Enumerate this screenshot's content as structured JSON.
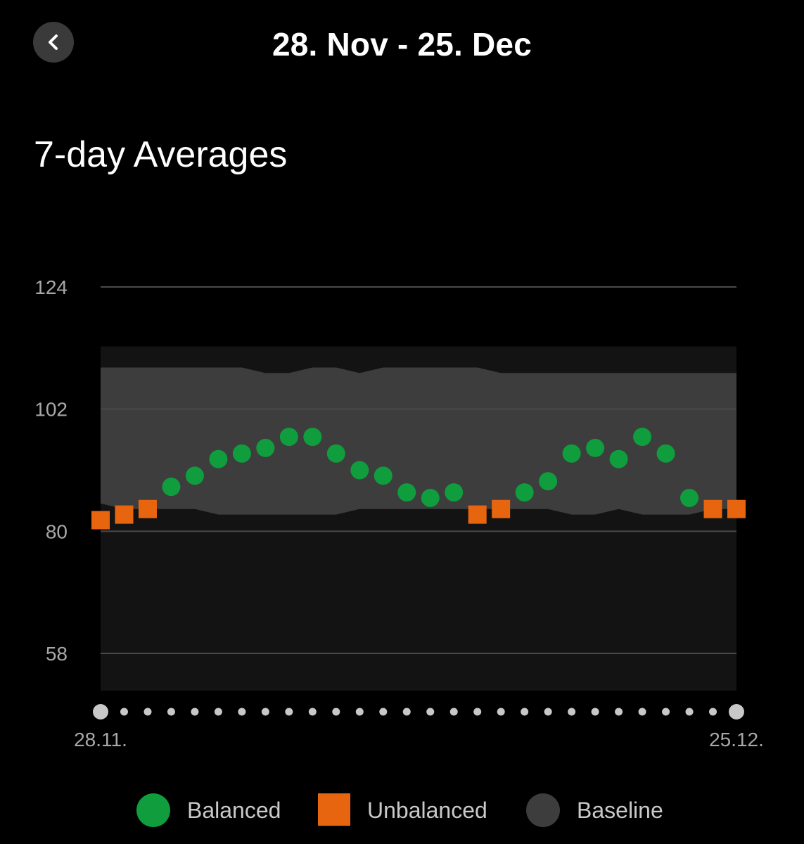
{
  "header": {
    "title": "28. Nov - 25. Dec",
    "back_icon": "chevron-left-icon"
  },
  "section": {
    "title": "7-day Averages"
  },
  "colors": {
    "balanced": "#0f9d3e",
    "unbalanced": "#e8650f",
    "baseline": "#3d3d3d",
    "plot_background": "#131313",
    "gridline": "#4a4a4a",
    "axis_text": "#a8a8a8",
    "day_dot": "#c8c8c8"
  },
  "chart_data": {
    "type": "scatter",
    "title": "7-day Averages",
    "xlabel": "",
    "ylabel": "",
    "ylim": [
      48,
      129
    ],
    "yticks": [
      124,
      102,
      80,
      58
    ],
    "x_start_label": "28.11.",
    "x_end_label": "25.12.",
    "x": [
      "28.11.",
      "29.11.",
      "30.11.",
      "1.12.",
      "2.12.",
      "3.12.",
      "4.12.",
      "5.12.",
      "6.12.",
      "7.12.",
      "8.12.",
      "9.12.",
      "10.12.",
      "11.12.",
      "12.12.",
      "13.12.",
      "14.12.",
      "15.12.",
      "16.12.",
      "17.12.",
      "18.12.",
      "19.12.",
      "20.12.",
      "21.12.",
      "22.12.",
      "23.12.",
      "24.12.",
      "25.12."
    ],
    "values": [
      82,
      83,
      84,
      88,
      90,
      93,
      94,
      95,
      97,
      97,
      94,
      91,
      90,
      87,
      86,
      87,
      83,
      84,
      87,
      89,
      94,
      95,
      93,
      97,
      94,
      86,
      84,
      84
    ],
    "status": [
      "Unbalanced",
      "Unbalanced",
      "Unbalanced",
      "Balanced",
      "Balanced",
      "Balanced",
      "Balanced",
      "Balanced",
      "Balanced",
      "Balanced",
      "Balanced",
      "Balanced",
      "Balanced",
      "Balanced",
      "Balanced",
      "Balanced",
      "Unbalanced",
      "Unbalanced",
      "Balanced",
      "Balanced",
      "Balanced",
      "Balanced",
      "Balanced",
      "Balanced",
      "Balanced",
      "Balanced",
      "Unbalanced",
      "Unbalanced"
    ],
    "baseline_upper": [
      109.5,
      109.5,
      109.5,
      109.5,
      109.5,
      109.5,
      109.5,
      108.5,
      108.5,
      109.5,
      109.5,
      108.5,
      109.5,
      109.5,
      109.5,
      109.5,
      109.5,
      108.5,
      108.5,
      108.5,
      108.5,
      108.5,
      108.5,
      108.5,
      108.5,
      108.5,
      108.5,
      108.5
    ],
    "baseline_lower": [
      85,
      84,
      84,
      84,
      84,
      83,
      83,
      83,
      83,
      83,
      83,
      84,
      84,
      84,
      84,
      84,
      84,
      84,
      84,
      84,
      83,
      83,
      84,
      83,
      83,
      83,
      84,
      84
    ],
    "legend": [
      {
        "label": "Balanced",
        "marker": "circle"
      },
      {
        "label": "Unbalanced",
        "marker": "square"
      },
      {
        "label": "Baseline",
        "marker": "circle"
      }
    ],
    "legend_position": "bottom",
    "grid": true
  }
}
